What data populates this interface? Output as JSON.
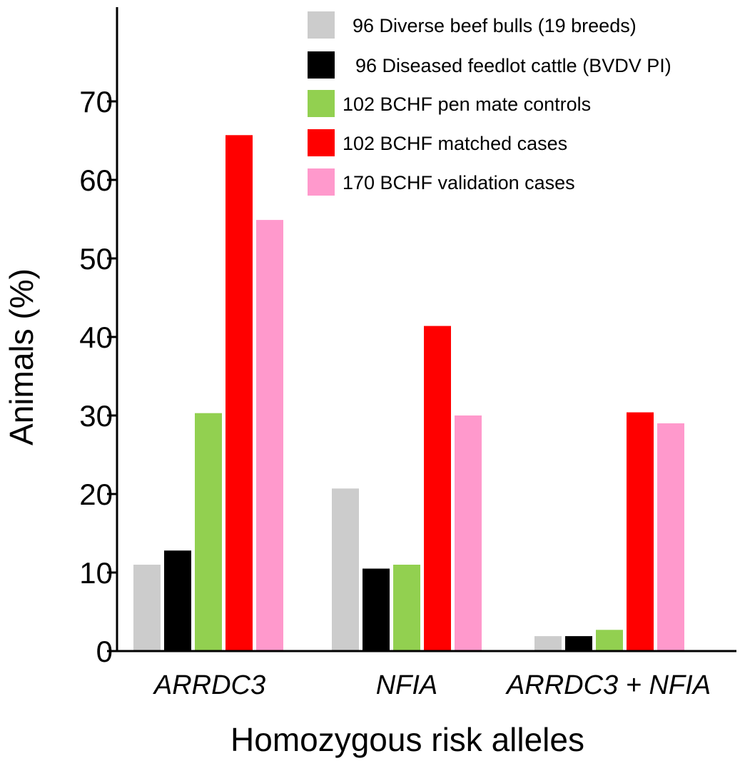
{
  "chart_data": {
    "type": "bar",
    "title": "",
    "xlabel": "Homozygous risk alleles",
    "ylabel": "Animals (%)",
    "ylim": [
      0,
      80
    ],
    "yticks": [
      0,
      10,
      20,
      30,
      40,
      50,
      60,
      70
    ],
    "grid": false,
    "legend_position": "top-right",
    "categories": [
      "ARRDC3",
      "NFIA",
      "ARRDC3 + NFIA"
    ],
    "series": [
      {
        "name": "96 Diverse beef bulls (19 breeds)",
        "color": "#cccccc",
        "values": [
          11.0,
          20.7,
          1.9
        ]
      },
      {
        "name": "96 Diseased feedlot cattle (BVDV PI)",
        "color": "#000000",
        "values": [
          12.8,
          10.5,
          1.9
        ]
      },
      {
        "name": "102 BCHF pen mate controls",
        "color": "#92d050",
        "values": [
          30.3,
          11.0,
          2.7
        ]
      },
      {
        "name": "102 BCHF matched cases",
        "color": "#ff0000",
        "values": [
          65.7,
          41.4,
          30.4
        ]
      },
      {
        "name": "170 BCHF validation cases",
        "color": "#ff99cc",
        "values": [
          54.9,
          30.0,
          29.0
        ]
      }
    ]
  }
}
